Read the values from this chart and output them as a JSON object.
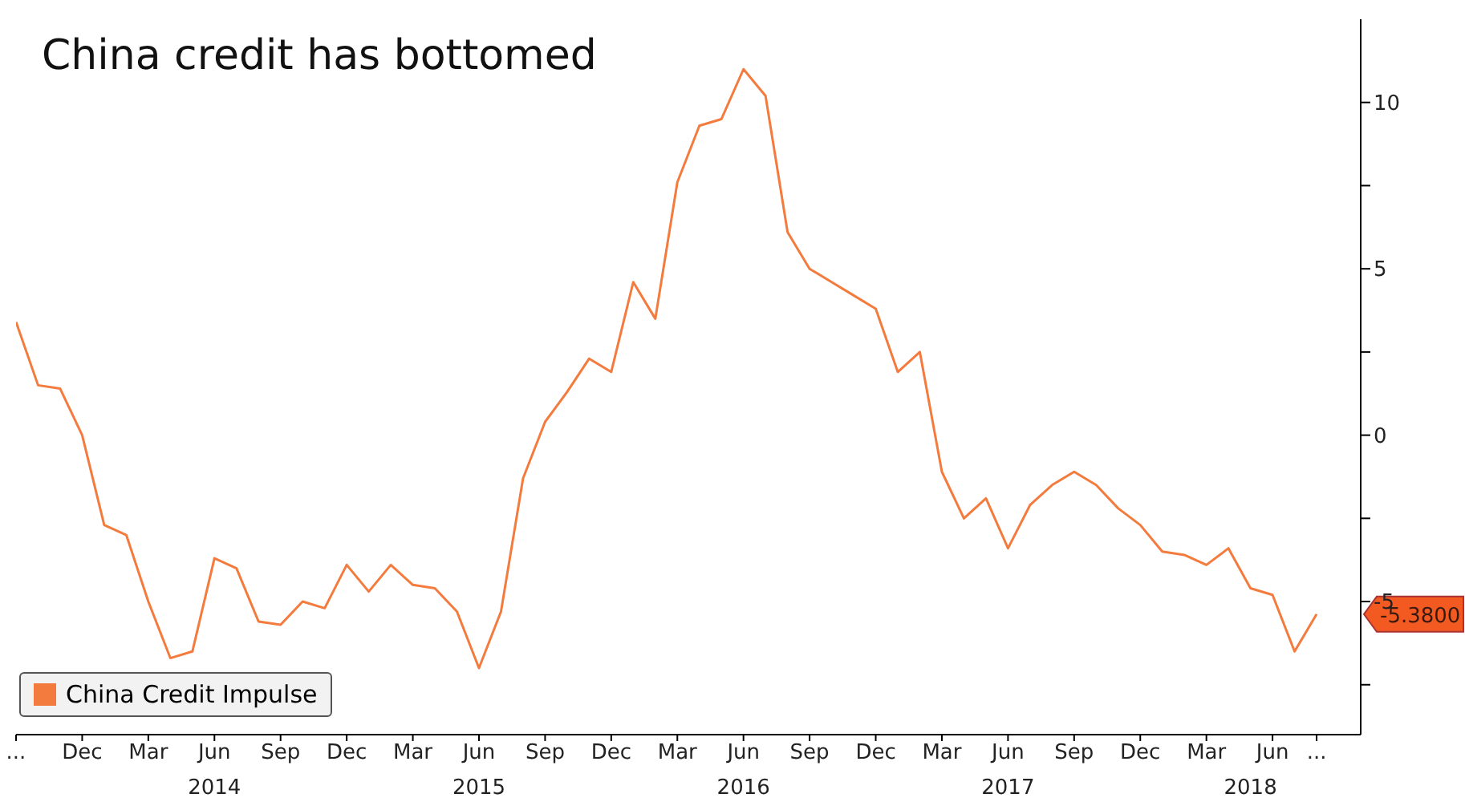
{
  "chart_data": {
    "type": "line",
    "title": "China credit has bottomed",
    "x": [
      "2013-09",
      "2013-10",
      "2013-11",
      "2013-12",
      "2014-01",
      "2014-02",
      "2014-03",
      "2014-04",
      "2014-05",
      "2014-06",
      "2014-07",
      "2014-08",
      "2014-09",
      "2014-10",
      "2014-11",
      "2014-12",
      "2015-01",
      "2015-02",
      "2015-03",
      "2015-04",
      "2015-05",
      "2015-06",
      "2015-07",
      "2015-08",
      "2015-09",
      "2015-10",
      "2015-11",
      "2015-12",
      "2016-01",
      "2016-02",
      "2016-03",
      "2016-04",
      "2016-05",
      "2016-06",
      "2016-07",
      "2016-08",
      "2016-09",
      "2016-10",
      "2016-11",
      "2016-12",
      "2017-01",
      "2017-02",
      "2017-03",
      "2017-04",
      "2017-05",
      "2017-06",
      "2017-07",
      "2017-08",
      "2017-09",
      "2017-10",
      "2017-11",
      "2017-12",
      "2018-01",
      "2018-02",
      "2018-03",
      "2018-04",
      "2018-05",
      "2018-06",
      "2018-07",
      "2018-08"
    ],
    "series": [
      {
        "name": "China Credit Impulse",
        "color": "#f47b3e",
        "values": [
          3.4,
          1.5,
          1.4,
          0,
          -2.7,
          -3,
          -5,
          -6.7,
          -6.5,
          -3.7,
          -4,
          -5.6,
          -5.7,
          -5,
          -5.2,
          -3.9,
          -4.7,
          -3.9,
          -4.5,
          -4.6,
          -5.3,
          -7,
          -5.3,
          -1.3,
          0.4,
          1.3,
          2.3,
          1.9,
          4.6,
          3.5,
          7.6,
          9.3,
          9.5,
          11,
          10.2,
          6.1,
          5,
          4.6,
          4.2,
          3.8,
          1.9,
          2.5,
          -1.1,
          -2.5,
          -1.9,
          -3.4,
          -2.1,
          -1.5,
          -1.1,
          -1.5,
          -2.2,
          -2.7,
          -3.5,
          -3.6,
          -3.9,
          -3.4,
          -4.6,
          -4.8,
          -6.5,
          -5.38
        ]
      }
    ],
    "xlim": [
      "2013-09",
      "2018-10"
    ],
    "xticks": [
      {
        "value": "2013-09",
        "label": "..."
      },
      {
        "value": "2013-12",
        "label": "Dec"
      },
      {
        "value": "2014-03",
        "label": "Mar"
      },
      {
        "value": "2014-06",
        "label": "Jun"
      },
      {
        "value": "2014-09",
        "label": "Sep"
      },
      {
        "value": "2014-12",
        "label": "Dec"
      },
      {
        "value": "2015-03",
        "label": "Mar"
      },
      {
        "value": "2015-06",
        "label": "Jun"
      },
      {
        "value": "2015-09",
        "label": "Sep"
      },
      {
        "value": "2015-12",
        "label": "Dec"
      },
      {
        "value": "2016-03",
        "label": "Mar"
      },
      {
        "value": "2016-06",
        "label": "Jun"
      },
      {
        "value": "2016-09",
        "label": "Sep"
      },
      {
        "value": "2016-12",
        "label": "Dec"
      },
      {
        "value": "2017-03",
        "label": "Mar"
      },
      {
        "value": "2017-06",
        "label": "Jun"
      },
      {
        "value": "2017-09",
        "label": "Sep"
      },
      {
        "value": "2017-12",
        "label": "Dec"
      },
      {
        "value": "2018-03",
        "label": "Mar"
      },
      {
        "value": "2018-06",
        "label": "Jun"
      },
      {
        "value": "2018-08",
        "label": "..."
      }
    ],
    "x2lim": [
      "2013-09",
      "2018-10"
    ],
    "x2ticks": [
      {
        "value": "2014-06",
        "label": "2014"
      },
      {
        "value": "2015-06",
        "label": "2015"
      },
      {
        "value": "2016-06",
        "label": "2016"
      },
      {
        "value": "2017-06",
        "label": "2017"
      },
      {
        "value": "2018-05",
        "label": "2018"
      }
    ],
    "ylim": [
      -9,
      12.5
    ],
    "yticks": [
      {
        "value": -7.5,
        "label": null
      },
      -5,
      {
        "value": -2.5,
        "label": null
      },
      0,
      {
        "value": 2.5,
        "label": null
      },
      5,
      {
        "value": 7.5,
        "label": null
      },
      10
    ],
    "annotations": [
      "-5.3800"
    ],
    "legend": "bottom left",
    "grid": false,
    "marker": "none",
    "line_style": "solid"
  }
}
